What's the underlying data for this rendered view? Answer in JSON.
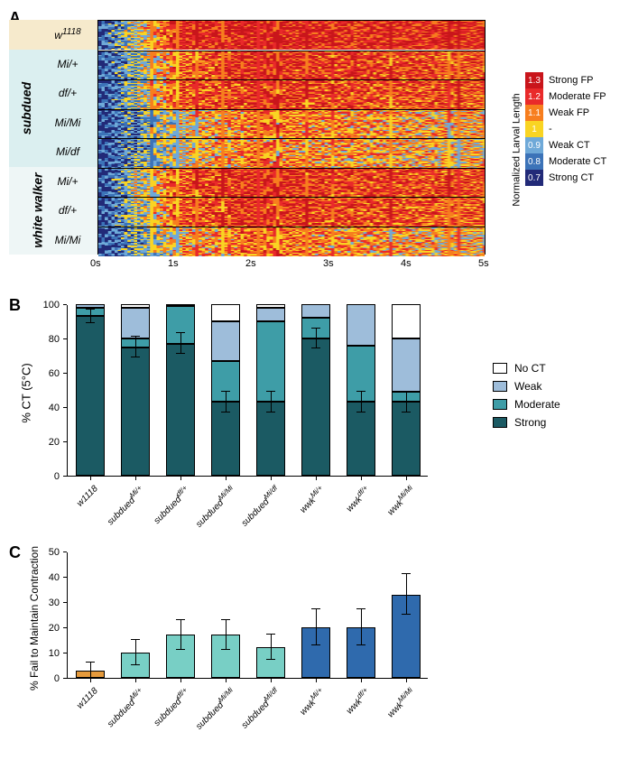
{
  "panelA": {
    "label": "A",
    "x_ticks": [
      "0s",
      "1s",
      "2s",
      "3s",
      "4s",
      "5s"
    ],
    "row_groups": [
      {
        "gene": null,
        "bg": "g1",
        "rows": [
          {
            "name": "w",
            "sup": "1118"
          }
        ]
      },
      {
        "gene": "subdued",
        "bg": "g2",
        "rows": [
          {
            "name": "Mi/+",
            "sup": null
          },
          {
            "name": "df/+",
            "sup": null
          },
          {
            "name": "Mi/Mi",
            "sup": null
          },
          {
            "name": "Mi/df",
            "sup": null
          }
        ]
      },
      {
        "gene": "white walker",
        "bg": "g3",
        "rows": [
          {
            "name": "Mi/+",
            "sup": null
          },
          {
            "name": "df/+",
            "sup": null
          },
          {
            "name": "Mi/Mi",
            "sup": null
          }
        ]
      }
    ],
    "n_rows_total": 8,
    "heatmap_palette": {
      "strong_fp": "#c9151b",
      "moderate_fp": "#e92a2a",
      "weak_fp": "#f77e1e",
      "neutral": "#f9d423",
      "weak_ct": "#6fa9d8",
      "moderate_ct": "#3c73b8",
      "strong_ct": "#222a78"
    },
    "legend": {
      "title": "Normalized Larval Length",
      "items": [
        {
          "val": "1.3",
          "label": "Strong FP",
          "color": "#c9151b"
        },
        {
          "val": "1.2",
          "label": "Moderate FP",
          "color": "#e92a2a"
        },
        {
          "val": "1.1",
          "label": "Weak FP",
          "color": "#f77e1e"
        },
        {
          "val": "1",
          "label": "-",
          "color": "#f9d423"
        },
        {
          "val": "0.9",
          "label": "Weak CT",
          "color": "#6fa9d8"
        },
        {
          "val": "0.8",
          "label": "Moderate CT",
          "color": "#3c73b8"
        },
        {
          "val": "0.7",
          "label": "Strong CT",
          "color": "#222a78"
        }
      ]
    },
    "row_profiles": [
      [
        0.08,
        0.85,
        0.95,
        0.9,
        0.87,
        0.88
      ],
      [
        0.05,
        0.7,
        0.88,
        0.82,
        0.8,
        0.78
      ],
      [
        0.06,
        0.72,
        0.85,
        0.8,
        0.77,
        0.76
      ],
      [
        0.04,
        0.5,
        0.7,
        0.65,
        0.6,
        0.58
      ],
      [
        0.05,
        0.48,
        0.68,
        0.62,
        0.58,
        0.55
      ],
      [
        0.05,
        0.75,
        0.88,
        0.83,
        0.8,
        0.78
      ],
      [
        0.05,
        0.74,
        0.86,
        0.8,
        0.77,
        0.75
      ],
      [
        0.04,
        0.55,
        0.72,
        0.65,
        0.6,
        0.55
      ]
    ]
  },
  "panelB": {
    "label": "B",
    "y_label": "% CT (5°C)",
    "y_max": 100,
    "y_step": 20,
    "categories": [
      "w1118",
      "subdued^{Mi/+}",
      "subdued^{df/+}",
      "subdued^{Mi/Mi}",
      "subdued^{Mi/df}",
      "wwk^{Mi/+}",
      "wwk^{df/+}",
      "wwk^{Mi/Mi}"
    ],
    "x_labels_html": [
      "w1118",
      "subdued<sup>Mi/+</sup>",
      "subdued<sup>df/+</sup>",
      "subdued<sup>Mi/Mi</sup>",
      "subdued<sup>Mi/df</sup>",
      "wwk<sup>Mi/+</sup>",
      "wwk<sup>df/+</sup>",
      "wwk<sup>Mi/Mi</sup>"
    ],
    "colors": {
      "no_ct": "#ffffff",
      "weak": "#9ebdda",
      "moderate": "#3e9da7",
      "strong": "#1b5a63"
    },
    "bars": [
      {
        "strong": 93,
        "moderate": 5,
        "weak": 2,
        "no_ct": 0,
        "err_strong": 4
      },
      {
        "strong": 75,
        "moderate": 5,
        "weak": 18,
        "no_ct": 2,
        "err_strong": 6
      },
      {
        "strong": 77,
        "moderate": 22,
        "weak": 1,
        "no_ct": 0,
        "err_strong": 6
      },
      {
        "strong": 43,
        "moderate": 24,
        "weak": 23,
        "no_ct": 10,
        "err_strong": 6
      },
      {
        "strong": 43,
        "moderate": 47,
        "weak": 8,
        "no_ct": 2,
        "err_strong": 6
      },
      {
        "strong": 80,
        "moderate": 12,
        "weak": 8,
        "no_ct": 0,
        "err_strong": 6
      },
      {
        "strong": 43,
        "moderate": 33,
        "weak": 24,
        "no_ct": 0,
        "err_strong": 6
      },
      {
        "strong": 43,
        "moderate": 6,
        "weak": 31,
        "no_ct": 20,
        "err_strong": 6
      }
    ],
    "legend": [
      {
        "label": "No CT",
        "color": "#ffffff"
      },
      {
        "label": "Weak",
        "color": "#9ebdda"
      },
      {
        "label": "Moderate",
        "color": "#3e9da7"
      },
      {
        "label": "Strong",
        "color": "#1b5a63"
      }
    ]
  },
  "panelC": {
    "label": "C",
    "y_label": "% Fail to Maintain Contraction",
    "y_max": 50,
    "y_step": 10,
    "colors": {
      "w1118": "#e59a3c",
      "subdued": "#78cfc5",
      "wwk": "#2f6aad"
    },
    "bars": [
      {
        "cat": "w1118",
        "val": 3,
        "err": 3,
        "color": "#e59a3c"
      },
      {
        "cat": "subdued^{Mi/+}",
        "val": 10,
        "err": 5,
        "color": "#78cfc5"
      },
      {
        "cat": "subdued^{df/+}",
        "val": 17,
        "err": 6,
        "color": "#78cfc5"
      },
      {
        "cat": "subdued^{Mi/Mi}",
        "val": 17,
        "err": 6,
        "color": "#78cfc5"
      },
      {
        "cat": "subdued^{Mi/df}",
        "val": 12,
        "err": 5,
        "color": "#78cfc5"
      },
      {
        "cat": "wwk^{Mi/+}",
        "val": 20,
        "err": 7,
        "color": "#2f6aad"
      },
      {
        "cat": "wwk^{df/+}",
        "val": 20,
        "err": 7,
        "color": "#2f6aad"
      },
      {
        "cat": "wwk^{Mi/Mi}",
        "val": 33,
        "err": 8,
        "color": "#2f6aad"
      }
    ],
    "x_labels_html": [
      "w1118",
      "subdued<sup>Mi/+</sup>",
      "subdued<sup>df/+</sup>",
      "subdued<sup>Mi/Mi</sup>",
      "subdued<sup>Mi/df</sup>",
      "wwk<sup>Mi/+</sup>",
      "wwk<sup>df/+</sup>",
      "wwk<sup>Mi/Mi</sup>"
    ]
  }
}
